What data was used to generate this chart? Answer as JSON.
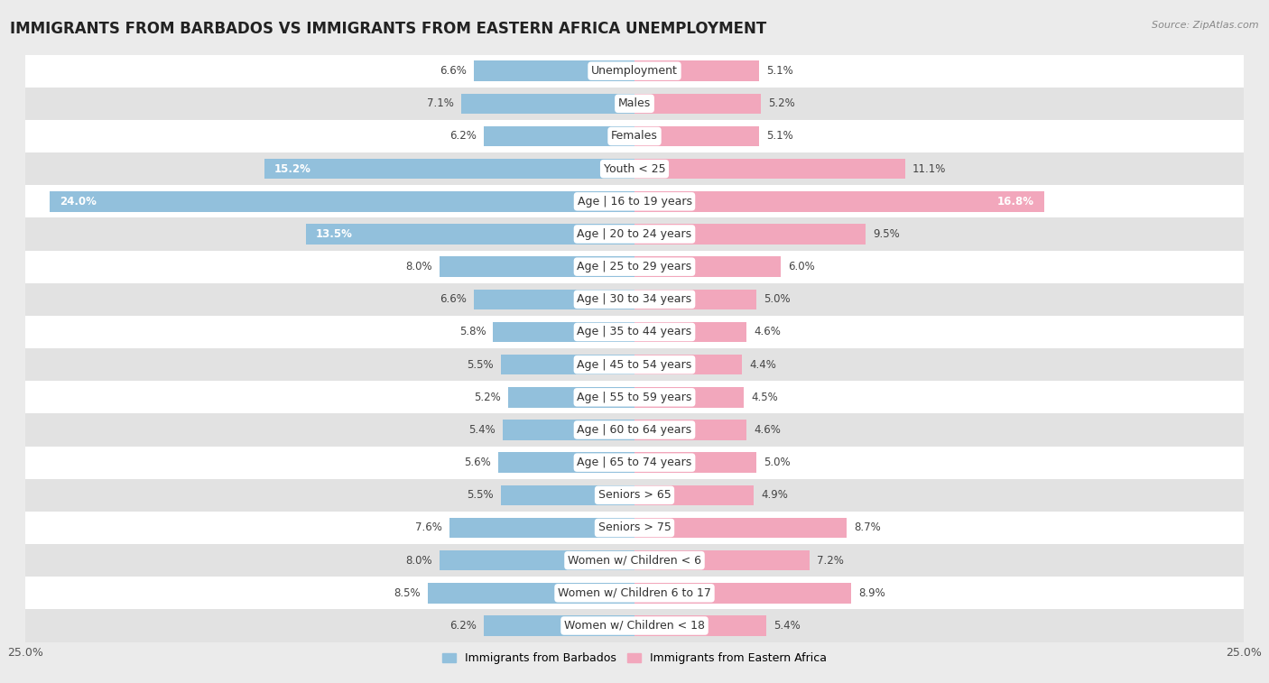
{
  "title": "IMMIGRANTS FROM BARBADOS VS IMMIGRANTS FROM EASTERN AFRICA UNEMPLOYMENT",
  "source": "Source: ZipAtlas.com",
  "categories": [
    "Unemployment",
    "Males",
    "Females",
    "Youth < 25",
    "Age | 16 to 19 years",
    "Age | 20 to 24 years",
    "Age | 25 to 29 years",
    "Age | 30 to 34 years",
    "Age | 35 to 44 years",
    "Age | 45 to 54 years",
    "Age | 55 to 59 years",
    "Age | 60 to 64 years",
    "Age | 65 to 74 years",
    "Seniors > 65",
    "Seniors > 75",
    "Women w/ Children < 6",
    "Women w/ Children 6 to 17",
    "Women w/ Children < 18"
  ],
  "barbados_values": [
    6.6,
    7.1,
    6.2,
    15.2,
    24.0,
    13.5,
    8.0,
    6.6,
    5.8,
    5.5,
    5.2,
    5.4,
    5.6,
    5.5,
    7.6,
    8.0,
    8.5,
    6.2
  ],
  "eastern_africa_values": [
    5.1,
    5.2,
    5.1,
    11.1,
    16.8,
    9.5,
    6.0,
    5.0,
    4.6,
    4.4,
    4.5,
    4.6,
    5.0,
    4.9,
    8.7,
    7.2,
    8.9,
    5.4
  ],
  "barbados_color": "#92C0DC",
  "eastern_africa_color": "#F2A7BC",
  "barbados_label": "Immigrants from Barbados",
  "eastern_africa_label": "Immigrants from Eastern Africa",
  "xlim": 25.0,
  "bg_color": "#EBEBEB",
  "row_color_odd": "#FFFFFF",
  "row_color_even": "#E2E2E2",
  "title_fontsize": 12,
  "label_fontsize": 9,
  "value_fontsize": 8.5
}
